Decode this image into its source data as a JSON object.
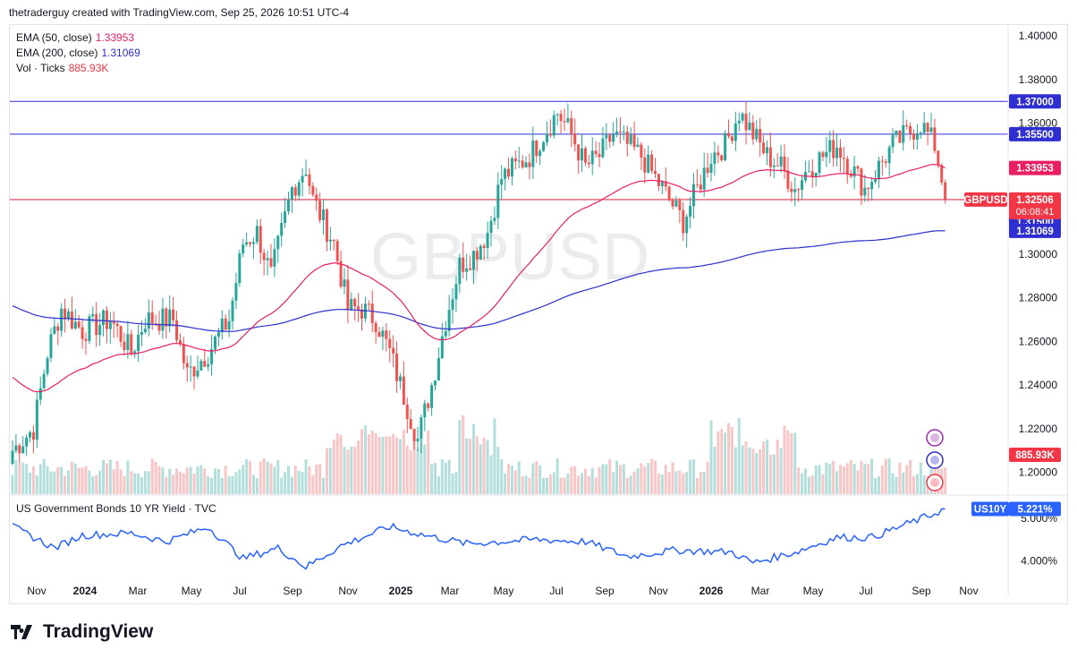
{
  "header": {
    "credit": "thetraderguy created with TradingView.com, Sep 25, 2026 10:51 UTC-4"
  },
  "legend": {
    "ema50": {
      "label": "EMA (50, close)",
      "value": "1.33953",
      "color": "#e91e63"
    },
    "ema200": {
      "label": "EMA (200, close)",
      "value": "1.31069",
      "color": "#2e2ed1"
    },
    "vol": {
      "label": "Vol · Ticks",
      "value": "885.93K",
      "color": "#f23645"
    }
  },
  "watermark": "GBPUSD",
  "indicator": {
    "title": "US Government Bonds 10 YR Yield · TVC",
    "symbol": "US10Y",
    "value": "5.221%",
    "color": "#2962ff"
  },
  "logo": {
    "text": "TradingView"
  },
  "colors": {
    "up": "#26a69a",
    "down": "#ef5350",
    "up_vol": "#b2dfdb",
    "down_vol": "#f8c6c6",
    "hline": "#2e2ed1",
    "price_line": "#f23645"
  },
  "chart_data": {
    "type": "candlestick",
    "symbol": "GBPUSD",
    "ylim": [
      1.19,
      1.405
    ],
    "y_ticks": [
      "1.40000",
      "1.38000",
      "1.36000",
      "1.34000",
      "1.30000",
      "1.28000",
      "1.26000",
      "1.24000",
      "1.22000",
      "1.20000"
    ],
    "x_ticks": [
      "Nov",
      "2024",
      "Mar",
      "May",
      "Jul",
      "Sep",
      "Nov",
      "2025",
      "Mar",
      "May",
      "Jul",
      "Sep",
      "Nov",
      "2026",
      "Mar",
      "May",
      "Jul",
      "Sep",
      "Nov"
    ],
    "levels": [
      {
        "value": 1.37,
        "label": "1.37000"
      },
      {
        "value": 1.355,
        "label": "1.35500"
      },
      {
        "value": 1.325,
        "label": "1.32500"
      },
      {
        "value": 1.315,
        "label": "1.31500"
      }
    ],
    "last_price": {
      "value": 1.32506,
      "label": "1.32506",
      "countdown": "06:08:41",
      "symbol": "GBPUSD"
    },
    "ema50": {
      "last": 1.33953,
      "label": "1.33953"
    },
    "ema200": {
      "last": 1.31069,
      "label": "1.31069"
    },
    "volume_last": {
      "label": "885.93K"
    },
    "close_keypoints": [
      [
        0,
        1.21
      ],
      [
        6,
        1.22
      ],
      [
        10,
        1.255
      ],
      [
        14,
        1.275
      ],
      [
        20,
        1.265
      ],
      [
        28,
        1.27
      ],
      [
        34,
        1.255
      ],
      [
        38,
        1.27
      ],
      [
        46,
        1.27
      ],
      [
        50,
        1.245
      ],
      [
        56,
        1.255
      ],
      [
        62,
        1.27
      ],
      [
        66,
        1.305
      ],
      [
        70,
        1.31
      ],
      [
        74,
        1.29
      ],
      [
        80,
        1.33
      ],
      [
        84,
        1.34
      ],
      [
        86,
        1.325
      ],
      [
        92,
        1.305
      ],
      [
        96,
        1.275
      ],
      [
        100,
        1.275
      ],
      [
        104,
        1.27
      ],
      [
        108,
        1.255
      ],
      [
        112,
        1.235
      ],
      [
        116,
        1.215
      ],
      [
        120,
        1.24
      ],
      [
        124,
        1.27
      ],
      [
        128,
        1.295
      ],
      [
        132,
        1.3
      ],
      [
        136,
        1.31
      ],
      [
        140,
        1.335
      ],
      [
        144,
        1.34
      ],
      [
        148,
        1.345
      ],
      [
        152,
        1.355
      ],
      [
        156,
        1.365
      ],
      [
        160,
        1.355
      ],
      [
        164,
        1.34
      ],
      [
        168,
        1.345
      ],
      [
        172,
        1.355
      ],
      [
        176,
        1.35
      ],
      [
        180,
        1.345
      ],
      [
        184,
        1.335
      ],
      [
        188,
        1.325
      ],
      [
        192,
        1.315
      ],
      [
        196,
        1.33
      ],
      [
        200,
        1.345
      ],
      [
        204,
        1.35
      ],
      [
        208,
        1.365
      ],
      [
        212,
        1.355
      ],
      [
        216,
        1.345
      ],
      [
        220,
        1.34
      ],
      [
        224,
        1.33
      ],
      [
        228,
        1.34
      ],
      [
        232,
        1.345
      ],
      [
        236,
        1.35
      ],
      [
        240,
        1.34
      ],
      [
        244,
        1.33
      ],
      [
        248,
        1.34
      ],
      [
        252,
        1.35
      ],
      [
        256,
        1.355
      ],
      [
        260,
        1.36
      ],
      [
        262,
        1.355
      ],
      [
        264,
        1.35
      ],
      [
        266,
        1.335
      ],
      [
        267,
        1.32506
      ]
    ],
    "us10y": {
      "last": 5.221,
      "ylim": [
        3.5,
        5.4
      ],
      "y_ticks": [
        "5.000%",
        "4.000%"
      ],
      "keypoints": [
        [
          0,
          4.8
        ],
        [
          12,
          4.3
        ],
        [
          20,
          4.6
        ],
        [
          34,
          4.65
        ],
        [
          44,
          4.45
        ],
        [
          56,
          4.8
        ],
        [
          66,
          4.05
        ],
        [
          76,
          4.3
        ],
        [
          84,
          3.85
        ],
        [
          94,
          4.35
        ],
        [
          108,
          4.8
        ],
        [
          118,
          4.6
        ],
        [
          130,
          4.4
        ],
        [
          150,
          4.5
        ],
        [
          164,
          4.45
        ],
        [
          176,
          4.1
        ],
        [
          190,
          4.25
        ],
        [
          206,
          4.2
        ],
        [
          212,
          3.95
        ],
        [
          224,
          4.2
        ],
        [
          236,
          4.55
        ],
        [
          246,
          4.55
        ],
        [
          254,
          4.8
        ],
        [
          262,
          5.05
        ],
        [
          267,
          5.221
        ]
      ]
    }
  }
}
